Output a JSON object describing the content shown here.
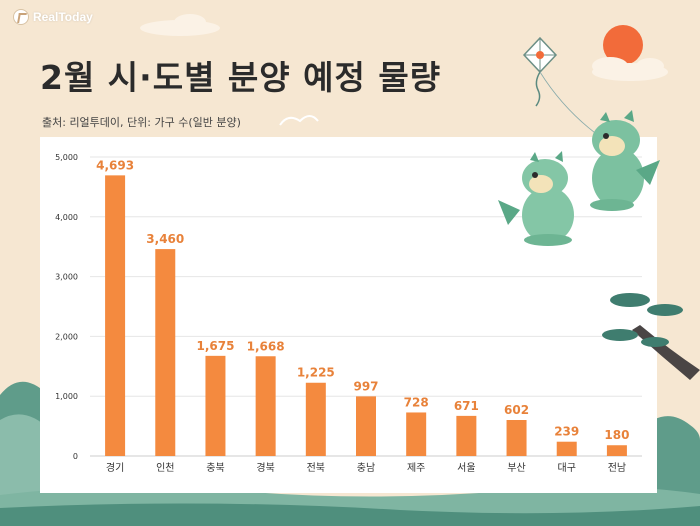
{
  "brand": {
    "logo_text": "RealToday"
  },
  "title": "2월 시·도별 분양 예정 물량",
  "source": "출처: 리얼투데이, 단위: 가구 수(일반 분양)",
  "colors": {
    "background": "#f6e7d2",
    "bar": "#f48a3f",
    "value_label": "#e8823a",
    "grid": "#e6e6e6",
    "axis_text": "#333333"
  },
  "icons": [
    "real-today-logo-icon",
    "sun-icon",
    "kite-icon",
    "dragon-icon",
    "pine-tree-icon",
    "cloud-icon"
  ],
  "chart_data": {
    "type": "bar",
    "title": "2월 시·도별 분양 예정 물량",
    "xlabel": "",
    "ylabel": "",
    "categories": [
      "경기",
      "인천",
      "충북",
      "경북",
      "전북",
      "충남",
      "제주",
      "서울",
      "부산",
      "대구",
      "전남"
    ],
    "values": [
      4693,
      3460,
      1675,
      1668,
      1225,
      997,
      728,
      671,
      602,
      239,
      180
    ],
    "value_labels": [
      "4,693",
      "3,460",
      "1,675",
      "1,668",
      "1,225",
      "997",
      "728",
      "671",
      "602",
      "239",
      "180"
    ],
    "ylim": [
      0,
      5000
    ],
    "yticks": [
      0,
      1000,
      2000,
      3000,
      4000,
      5000
    ],
    "ytick_labels": [
      "0",
      "1,000",
      "2,000",
      "3,000",
      "4,000",
      "5,000"
    ],
    "grid": true,
    "legend": "none"
  }
}
